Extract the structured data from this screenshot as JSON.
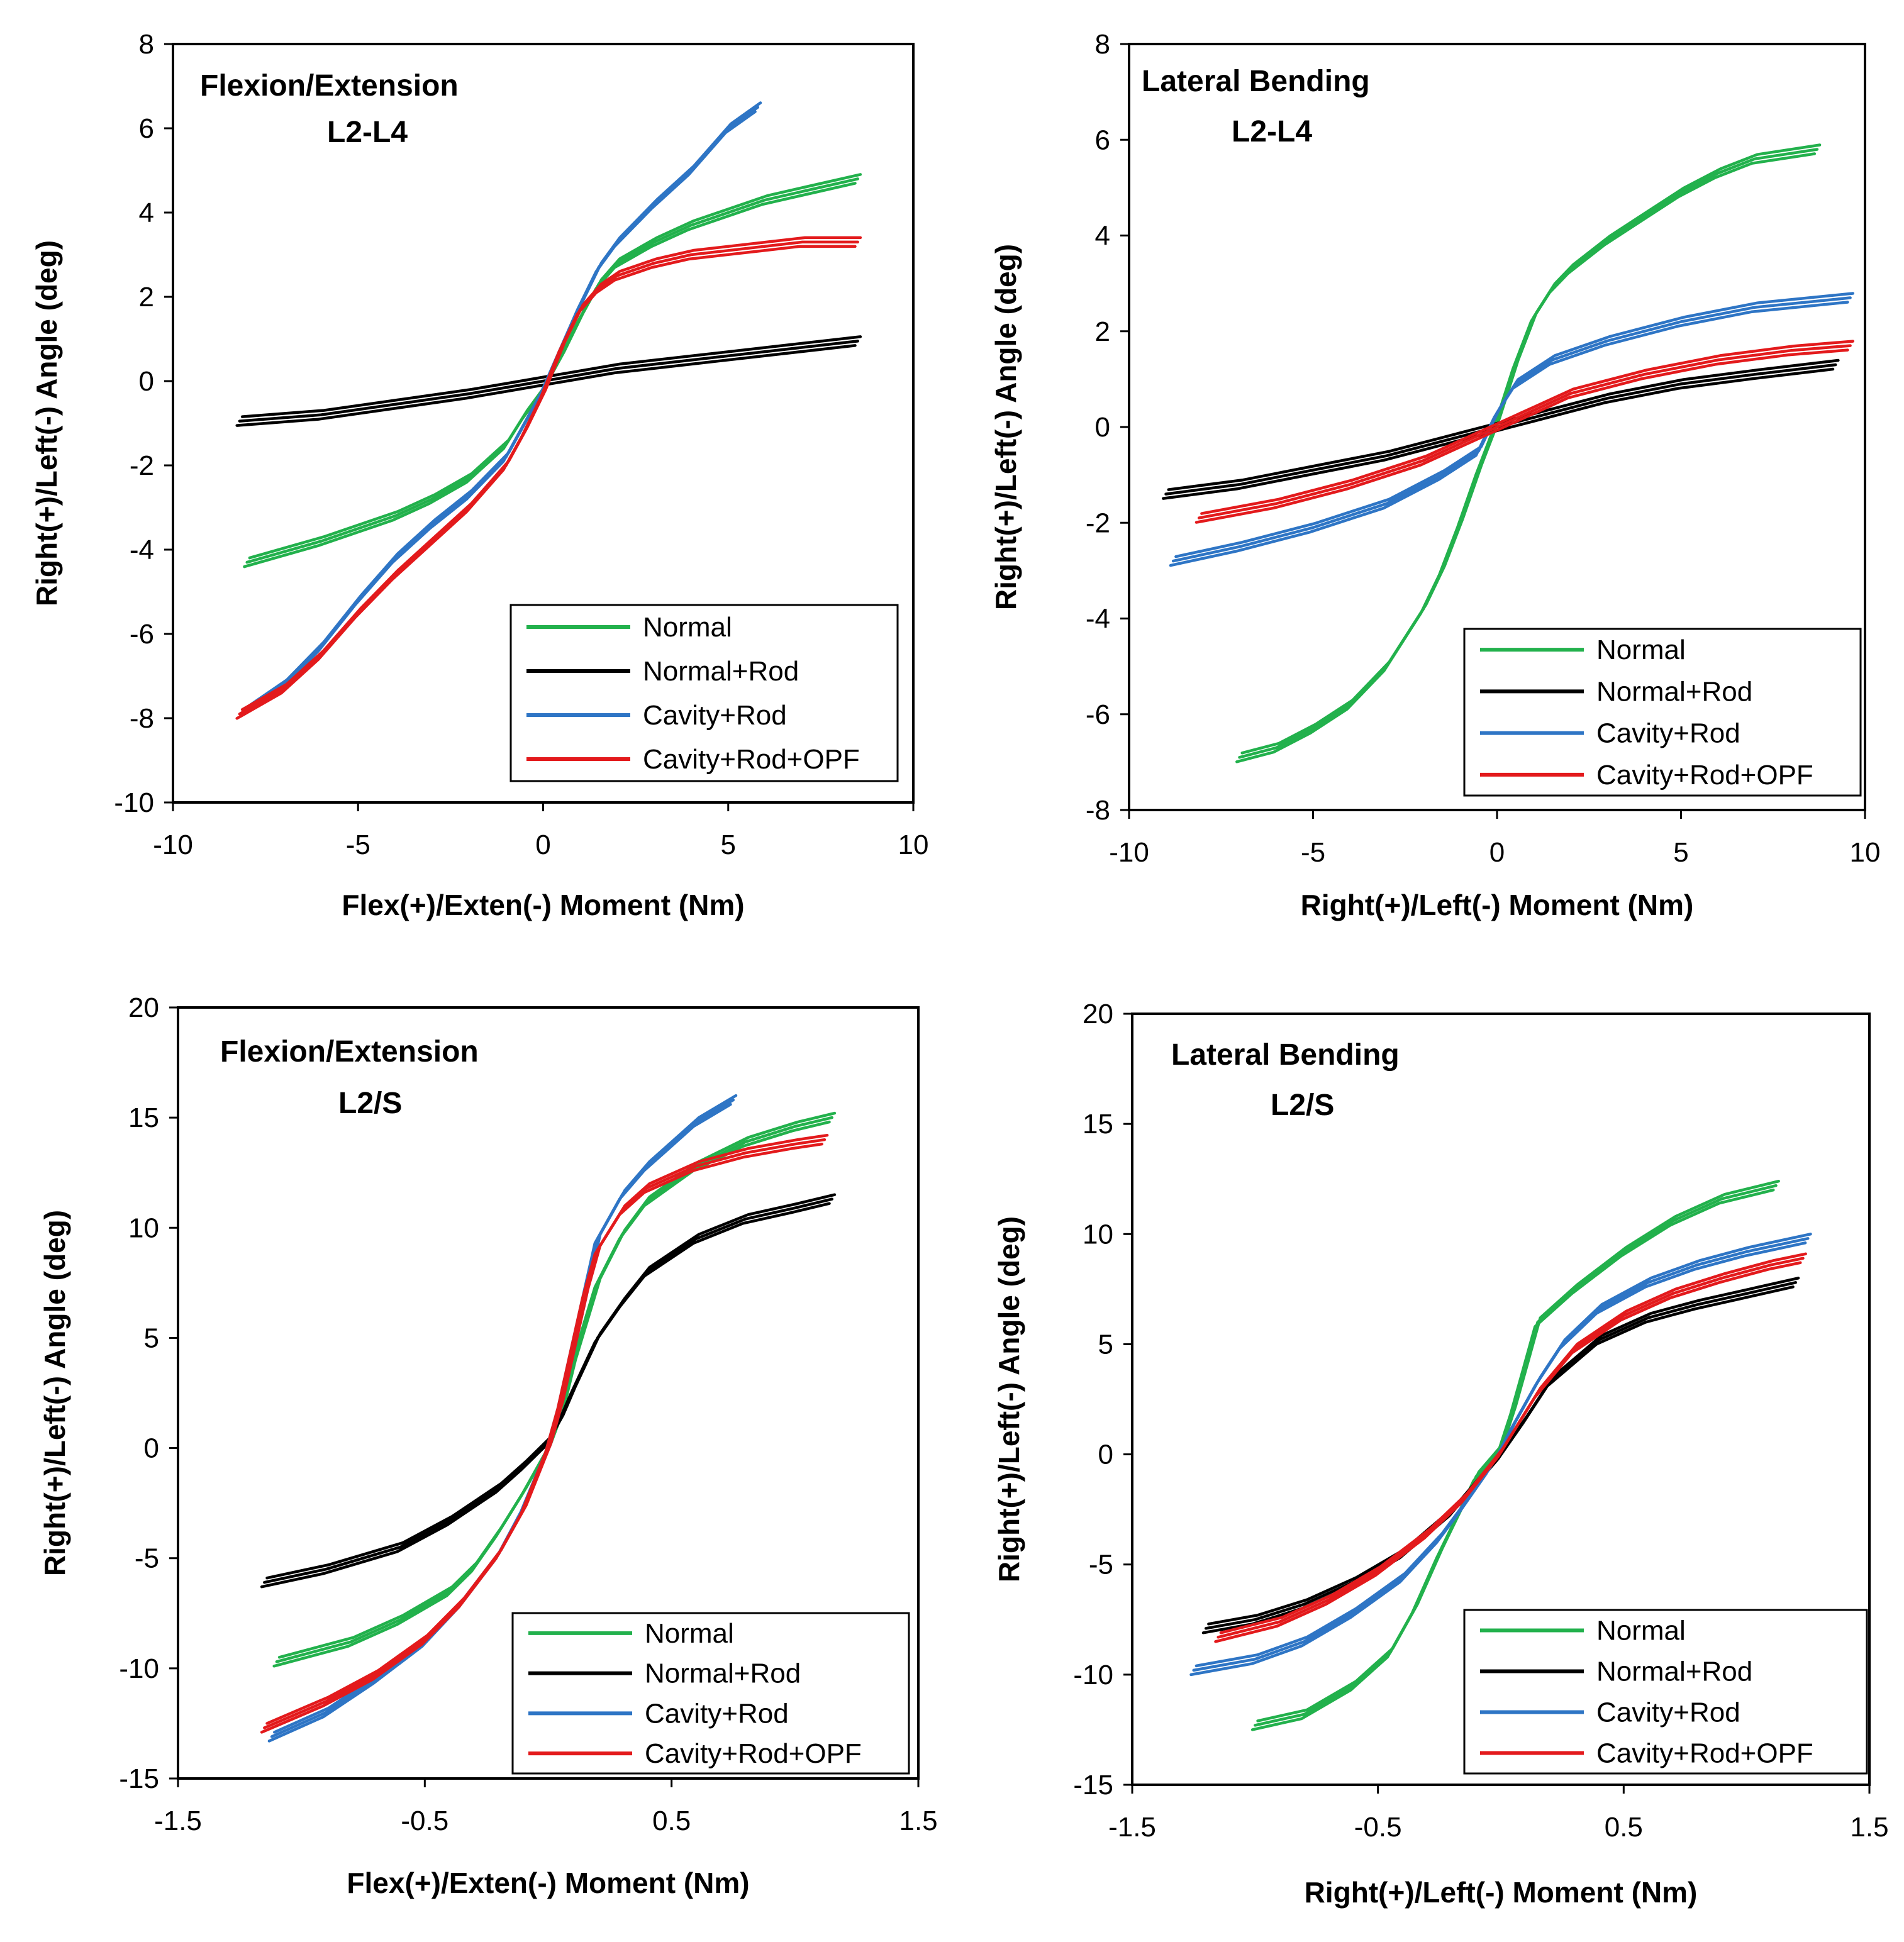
{
  "colors": {
    "normal": "#22b14c",
    "normal_rod": "#000000",
    "cavity_rod": "#2e75c5",
    "cavity_rod_opf": "#e31a1c"
  },
  "chart_data": [
    {
      "type": "line",
      "title": [
        "Flexion/Extension",
        "L2-L4"
      ],
      "xlabel": "Flex(+)/Exten(-)  Moment (Nm)",
      "ylabel": "Right(+)/Left(-)  Angle (deg)",
      "xlim": [
        -10,
        10
      ],
      "ylim": [
        -10,
        8
      ],
      "xticks": [
        -10,
        -5,
        0,
        5,
        10
      ],
      "yticks": [
        -10,
        -8,
        -6,
        -4,
        -2,
        0,
        2,
        4,
        6,
        8
      ],
      "xtick_labels": [
        "-10",
        "-5",
        "0",
        "5",
        "10"
      ],
      "ytick_labels": [
        "-10",
        "-8",
        "-6",
        "-4",
        "-2",
        "0",
        "2",
        "4",
        "6",
        "8"
      ],
      "legend": [
        "Normal",
        "Normal+Rod",
        "Cavity+Rod",
        "Cavity+Rod+OPF"
      ],
      "legend_position": "bottom-right",
      "series": [
        {
          "name": "Normal",
          "color_key": "normal",
          "x": [
            -8,
            -6,
            -4,
            -3,
            -2,
            -1,
            -0.5,
            0,
            0.5,
            1,
            1.5,
            2,
            3,
            4,
            5,
            6,
            7,
            8.5
          ],
          "y": [
            -4.3,
            -3.8,
            -3.2,
            -2.8,
            -2.3,
            -1.5,
            -0.8,
            -0.2,
            0.6,
            1.5,
            2.3,
            2.8,
            3.3,
            3.7,
            4.0,
            4.3,
            4.5,
            4.8
          ]
        },
        {
          "name": "Normal+Rod",
          "color_key": "normal_rod",
          "x": [
            -8.2,
            -6,
            -4,
            -2,
            -1,
            0,
            1,
            2,
            4,
            6,
            8.5
          ],
          "y": [
            -0.95,
            -0.8,
            -0.55,
            -0.3,
            -0.15,
            0.0,
            0.15,
            0.3,
            0.5,
            0.7,
            0.95
          ]
        },
        {
          "name": "Cavity+Rod",
          "color_key": "cavity_rod",
          "x": [
            -8,
            -7,
            -6,
            -5,
            -4,
            -3,
            -2,
            -1,
            -0.5,
            0,
            0.5,
            1,
            1.5,
            2,
            3,
            4,
            5,
            5.8
          ],
          "y": [
            -7.8,
            -7.2,
            -6.3,
            -5.2,
            -4.2,
            -3.4,
            -2.7,
            -1.8,
            -1.0,
            -0.2,
            0.8,
            1.8,
            2.7,
            3.3,
            4.2,
            5.0,
            6.0,
            6.5
          ]
        },
        {
          "name": "Cavity+Rod+OPF",
          "color_key": "cavity_rod_opf",
          "x": [
            -8.2,
            -7,
            -6,
            -5,
            -4,
            -3,
            -2,
            -1,
            -0.5,
            0,
            0.5,
            1,
            1.5,
            2,
            3,
            4,
            5,
            6,
            7,
            8.5
          ],
          "y": [
            -7.9,
            -7.3,
            -6.5,
            -5.5,
            -4.6,
            -3.8,
            -3.0,
            -2.0,
            -1.2,
            -0.3,
            0.8,
            1.7,
            2.2,
            2.5,
            2.8,
            3.0,
            3.1,
            3.2,
            3.3,
            3.3
          ]
        }
      ]
    },
    {
      "type": "line",
      "title": [
        "Lateral Bending",
        "L2-L4"
      ],
      "xlabel": "Right(+)/Left(-)  Moment (Nm)",
      "ylabel": "Right(+)/Left(-)  Angle (deg)",
      "xlim": [
        -10,
        10
      ],
      "ylim": [
        -8,
        8
      ],
      "xticks": [
        -10,
        -5,
        0,
        5,
        10
      ],
      "yticks": [
        -8,
        -6,
        -4,
        -2,
        0,
        2,
        4,
        6,
        8
      ],
      "xtick_labels": [
        "-10",
        "-5",
        "0",
        "5",
        "10"
      ],
      "ytick_labels": [
        "-8",
        "-6",
        "-4",
        "-2",
        "0",
        "2",
        "4",
        "6",
        "8"
      ],
      "legend": [
        "Normal",
        "Normal+Rod",
        "Cavity+Rod",
        "Cavity+Rod+OPF"
      ],
      "legend_position": "bottom-right",
      "series": [
        {
          "name": "Normal",
          "color_key": "normal",
          "x": [
            -7,
            -6,
            -5,
            -4,
            -3,
            -2,
            -1.5,
            -1,
            -0.5,
            0,
            0.5,
            1,
            1.5,
            2,
            3,
            4,
            5,
            6,
            7,
            8.7
          ],
          "y": [
            -6.9,
            -6.7,
            -6.3,
            -5.8,
            -5.0,
            -3.8,
            -3.0,
            -2.0,
            -0.9,
            0.1,
            1.3,
            2.3,
            2.9,
            3.3,
            3.9,
            4.4,
            4.9,
            5.3,
            5.6,
            5.8
          ]
        },
        {
          "name": "Normal+Rod",
          "color_key": "normal_rod",
          "x": [
            -9,
            -7,
            -5,
            -3,
            -1,
            0,
            1,
            3,
            5,
            7,
            9.2
          ],
          "y": [
            -1.4,
            -1.2,
            -0.9,
            -0.6,
            -0.2,
            0.0,
            0.2,
            0.6,
            0.9,
            1.1,
            1.3
          ]
        },
        {
          "name": "Cavity+Rod",
          "color_key": "cavity_rod",
          "x": [
            -8.8,
            -7,
            -5,
            -3,
            -1.5,
            -0.5,
            0,
            0.5,
            1.5,
            3,
            5,
            7,
            9.6
          ],
          "y": [
            -2.8,
            -2.5,
            -2.1,
            -1.6,
            -1.0,
            -0.5,
            0.3,
            0.9,
            1.4,
            1.8,
            2.2,
            2.5,
            2.7
          ]
        },
        {
          "name": "Cavity+Rod+OPF",
          "color_key": "cavity_rod_opf",
          "x": [
            -8.1,
            -6,
            -4,
            -2,
            -1,
            0,
            1,
            2,
            4,
            6,
            8,
            9.6
          ],
          "y": [
            -1.9,
            -1.6,
            -1.2,
            -0.7,
            -0.35,
            0.0,
            0.35,
            0.7,
            1.1,
            1.4,
            1.6,
            1.7
          ]
        }
      ]
    },
    {
      "type": "line",
      "title": [
        "Flexion/Extension",
        "L2/S"
      ],
      "xlabel": "Flex(+)/Exten(-)  Moment (Nm)",
      "ylabel": "Right(+)/Left(-)  Angle (deg)",
      "xlim": [
        -1.5,
        1.5
      ],
      "ylim": [
        -15,
        20
      ],
      "xticks": [
        -1.5,
        -0.5,
        0.5,
        1.5
      ],
      "yticks": [
        -15,
        -10,
        -5,
        0,
        5,
        10,
        15,
        20
      ],
      "xtick_labels": [
        "-1.5",
        "-0.5",
        "0.5",
        "1.5"
      ],
      "ytick_labels": [
        "-15",
        "-10",
        "-5",
        "0",
        "5",
        "10",
        "15",
        "20"
      ],
      "legend": [
        "Normal",
        "Normal+Rod",
        "Cavity+Rod",
        "Cavity+Rod+OPF"
      ],
      "legend_position": "bottom-right",
      "series": [
        {
          "name": "Normal",
          "color_key": "normal",
          "x": [
            -1.1,
            -0.8,
            -0.6,
            -0.4,
            -0.3,
            -0.2,
            -0.1,
            0,
            0.05,
            0.1,
            0.2,
            0.3,
            0.4,
            0.6,
            0.8,
            1.0,
            1.15
          ],
          "y": [
            -9.7,
            -8.8,
            -7.8,
            -6.5,
            -5.4,
            -3.8,
            -2.0,
            0.0,
            1.5,
            3.8,
            7.5,
            9.7,
            11.2,
            12.8,
            13.9,
            14.6,
            15.0
          ]
        },
        {
          "name": "Normal+Rod",
          "color_key": "normal_rod",
          "x": [
            -1.15,
            -0.9,
            -0.6,
            -0.4,
            -0.2,
            -0.1,
            0,
            0.05,
            0.1,
            0.15,
            0.2,
            0.3,
            0.4,
            0.6,
            0.8,
            1.0,
            1.15
          ],
          "y": [
            -6.1,
            -5.5,
            -4.5,
            -3.3,
            -1.8,
            -0.8,
            0.3,
            1.3,
            2.6,
            3.8,
            5.0,
            6.6,
            8.0,
            9.5,
            10.4,
            10.9,
            11.3
          ]
        },
        {
          "name": "Cavity+Rod",
          "color_key": "cavity_rod",
          "x": [
            -1.12,
            -0.9,
            -0.7,
            -0.5,
            -0.35,
            -0.2,
            -0.1,
            0,
            0.05,
            0.1,
            0.15,
            0.2,
            0.3,
            0.4,
            0.5,
            0.6,
            0.75
          ],
          "y": [
            -13.1,
            -12.0,
            -10.5,
            -8.8,
            -7.0,
            -4.8,
            -2.7,
            0.0,
            2.0,
            4.5,
            7.0,
            9.5,
            11.5,
            12.8,
            13.8,
            14.8,
            15.8
          ]
        },
        {
          "name": "Cavity+Rod+OPF",
          "color_key": "cavity_rod_opf",
          "x": [
            -1.15,
            -0.9,
            -0.7,
            -0.5,
            -0.35,
            -0.2,
            -0.1,
            0,
            0.05,
            0.1,
            0.15,
            0.2,
            0.3,
            0.4,
            0.6,
            0.8,
            1.0,
            1.12
          ],
          "y": [
            -12.7,
            -11.5,
            -10.3,
            -8.7,
            -7.0,
            -4.8,
            -2.8,
            0.0,
            2.0,
            4.5,
            7.0,
            9.0,
            10.8,
            11.8,
            12.8,
            13.4,
            13.8,
            14.0
          ]
        }
      ]
    },
    {
      "type": "line",
      "title": [
        "Lateral Bending",
        "L2/S"
      ],
      "xlabel": "Right(+)/Left(-)  Moment (Nm)",
      "ylabel": "Right(+)/Left(-)  Angle (deg)",
      "xlim": [
        -1.5,
        1.5
      ],
      "ylim": [
        -15,
        20
      ],
      "xticks": [
        -1.5,
        -0.5,
        0.5,
        1.5
      ],
      "yticks": [
        -15,
        -10,
        -5,
        0,
        5,
        10,
        15,
        20
      ],
      "xtick_labels": [
        "-1.5",
        "-0.5",
        "0.5",
        "1.5"
      ],
      "ytick_labels": [
        "-15",
        "-10",
        "-5",
        "0",
        "5",
        "10",
        "15",
        "20"
      ],
      "legend": [
        "Normal",
        "Normal+Rod",
        "Cavity+Rod",
        "Cavity+Rod+OPF"
      ],
      "legend_position": "bottom-right",
      "series": [
        {
          "name": "Normal",
          "color_key": "normal",
          "x": [
            -1.0,
            -0.8,
            -0.6,
            -0.45,
            -0.35,
            -0.25,
            -0.15,
            -0.1,
            0,
            0.05,
            0.1,
            0.15,
            0.3,
            0.5,
            0.7,
            0.9,
            1.12
          ],
          "y": [
            -12.3,
            -11.8,
            -10.5,
            -9.0,
            -7.0,
            -4.5,
            -2.2,
            -1.0,
            0.3,
            2.0,
            4.0,
            6.0,
            7.5,
            9.2,
            10.6,
            11.6,
            12.2
          ]
        },
        {
          "name": "Normal+Rod",
          "color_key": "normal_rod",
          "x": [
            -1.2,
            -1.0,
            -0.8,
            -0.6,
            -0.4,
            -0.2,
            -0.1,
            0,
            0.1,
            0.2,
            0.4,
            0.6,
            0.8,
            1.0,
            1.2
          ],
          "y": [
            -7.9,
            -7.5,
            -6.8,
            -5.8,
            -4.5,
            -2.6,
            -1.3,
            0.0,
            1.6,
            3.3,
            5.2,
            6.2,
            6.8,
            7.3,
            7.8
          ]
        },
        {
          "name": "Cavity+Rod",
          "color_key": "cavity_rod",
          "x": [
            -1.25,
            -1.0,
            -0.8,
            -0.6,
            -0.4,
            -0.25,
            -0.15,
            -0.05,
            0,
            0.05,
            0.15,
            0.25,
            0.4,
            0.6,
            0.8,
            1.0,
            1.25
          ],
          "y": [
            -9.8,
            -9.3,
            -8.5,
            -7.2,
            -5.6,
            -3.8,
            -2.3,
            -0.7,
            0.2,
            1.3,
            3.3,
            5.0,
            6.6,
            7.8,
            8.6,
            9.2,
            9.8
          ]
        },
        {
          "name": "Cavity+Rod+OPF",
          "color_key": "cavity_rod_opf",
          "x": [
            -1.15,
            -0.9,
            -0.7,
            -0.5,
            -0.3,
            -0.15,
            -0.05,
            0,
            0.05,
            0.15,
            0.3,
            0.5,
            0.7,
            0.9,
            1.1,
            1.23
          ],
          "y": [
            -8.3,
            -7.6,
            -6.6,
            -5.3,
            -3.6,
            -2.0,
            -0.6,
            0.1,
            1.0,
            2.8,
            4.8,
            6.3,
            7.3,
            8.0,
            8.6,
            8.9
          ]
        }
      ]
    }
  ]
}
